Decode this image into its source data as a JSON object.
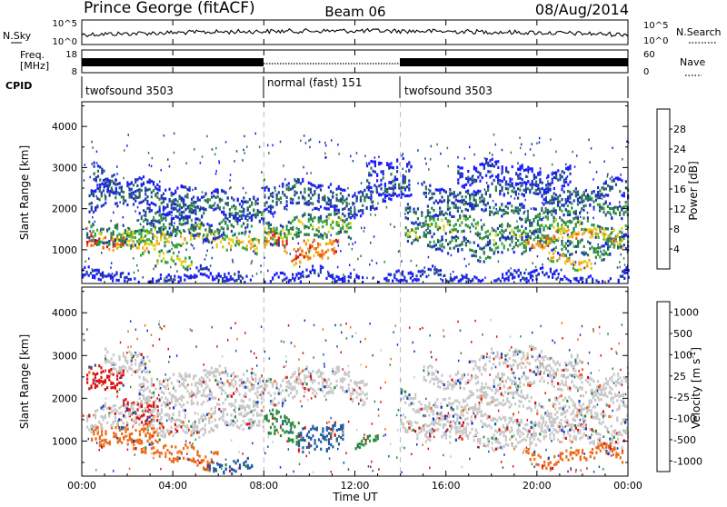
{
  "header": {
    "station": "Prince George (fitACF)",
    "beam": "Beam 06",
    "date": "08/Aug/2014"
  },
  "top_panels": {
    "nsky_label": "N.Sky",
    "nsearch_label": "N.Search",
    "freq_label_line1": "Freq.",
    "freq_label_line2": "[MHz]",
    "nave_label": "Nave",
    "cpid_label": "CPID",
    "noise_left_ticks": [
      "10^5",
      "10^0"
    ],
    "noise_right_ticks": [
      "10^5",
      "10^0"
    ],
    "freq_left_ticks": [
      "18",
      "8"
    ],
    "freq_right_ticks": [
      "60",
      "0"
    ]
  },
  "cpid_segments": [
    {
      "label": "twofsound 3503",
      "start_hour": 0,
      "end_hour": 8
    },
    {
      "label": "normal (fast) 151",
      "start_hour": 8,
      "end_hour": 14
    },
    {
      "label": "twofsound 3503",
      "start_hour": 14,
      "end_hour": 24
    }
  ],
  "chart_data": [
    {
      "type": "heatmap",
      "name": "Power",
      "ylabel": "Slant Range [km]",
      "xlabel": "Time UT",
      "x_ticks": [
        "00:00",
        "04:00",
        "08:00",
        "12:00",
        "16:00",
        "20:00",
        "00:00"
      ],
      "x_range_hours": [
        0,
        24
      ],
      "y_ticks": [
        1000,
        2000,
        3000,
        4000
      ],
      "ylim": [
        180,
        4600
      ],
      "colorbar_label": "Power [dB]",
      "colorbar_ticks": [
        4,
        8,
        12,
        16,
        20,
        24,
        28
      ],
      "colorbar_range": [
        0,
        32
      ],
      "colors": [
        "#1a1aff",
        "#1f3f9c",
        "#2e7a4a",
        "#36a83a",
        "#e6cf1a",
        "#f39d1c",
        "#ee5a16",
        "#d9110f"
      ],
      "bands": [
        {
          "t0": 0.2,
          "t1": 1.8,
          "r": 1100,
          "w": 220,
          "v": 28
        },
        {
          "t0": 1.5,
          "t1": 7.8,
          "r": 1250,
          "w": 250,
          "v": 19
        },
        {
          "t0": 0.2,
          "t1": 3.5,
          "r": 1450,
          "w": 280,
          "v": 14
        },
        {
          "t0": 2.5,
          "t1": 7.5,
          "r": 1600,
          "w": 300,
          "v": 10
        },
        {
          "t0": 0.3,
          "t1": 5.0,
          "r": 2300,
          "w": 400,
          "v": 7
        },
        {
          "t0": 4.0,
          "t1": 8.0,
          "r": 2000,
          "w": 350,
          "v": 9
        },
        {
          "t0": 0.5,
          "t1": 1.5,
          "r": 2700,
          "w": 350,
          "v": 6
        },
        {
          "t0": 3.2,
          "t1": 4.8,
          "r": 650,
          "w": 200,
          "v": 16
        },
        {
          "t0": 8.0,
          "t1": 9.0,
          "r": 1150,
          "w": 250,
          "v": 27
        },
        {
          "t0": 9.2,
          "t1": 11.3,
          "r": 1000,
          "w": 300,
          "v": 26
        },
        {
          "t0": 8.0,
          "t1": 11.8,
          "r": 1500,
          "w": 350,
          "v": 14
        },
        {
          "t0": 8.0,
          "t1": 13.0,
          "r": 2250,
          "w": 400,
          "v": 8
        },
        {
          "t0": 12.5,
          "t1": 14.5,
          "r": 2600,
          "w": 600,
          "v": 6
        },
        {
          "t0": 14.2,
          "t1": 24.0,
          "r": 2000,
          "w": 250,
          "v": 10
        },
        {
          "t0": 14.2,
          "t1": 24.0,
          "r": 1500,
          "w": 250,
          "v": 14
        },
        {
          "t0": 15.0,
          "t1": 24.0,
          "r": 1100,
          "w": 250,
          "v": 11
        },
        {
          "t0": 15.0,
          "t1": 24.0,
          "r": 2400,
          "w": 250,
          "v": 8
        },
        {
          "t0": 16.5,
          "t1": 21.5,
          "r": 2800,
          "w": 300,
          "v": 5
        },
        {
          "t0": 19.5,
          "t1": 23.8,
          "r": 1300,
          "w": 180,
          "v": 22
        },
        {
          "t0": 20.5,
          "t1": 22.5,
          "r": 650,
          "w": 180,
          "v": 20
        },
        {
          "t0": 0.0,
          "t1": 24.0,
          "r": 300,
          "w": 160,
          "v": 4
        }
      ]
    },
    {
      "type": "heatmap",
      "name": "Velocity",
      "ylabel": "Slant Range [km]",
      "xlabel": "Time UT",
      "x_ticks": [
        "00:00",
        "04:00",
        "08:00",
        "12:00",
        "16:00",
        "20:00",
        "00:00"
      ],
      "x_range_hours": [
        0,
        24
      ],
      "y_ticks": [
        1000,
        2000,
        3000,
        4000
      ],
      "ylim": [
        180,
        4600
      ],
      "colorbar_label": "Velocity [m s^-1]",
      "colorbar_ticks": [
        1000,
        500,
        100,
        25,
        -25,
        -100,
        -500,
        -1000
      ],
      "colors": [
        "#1432c8",
        "#1f5aa0",
        "#2e8a3e",
        "#55c12a",
        "#c8c8c8",
        "#f3a51c",
        "#ee6a16",
        "#d9110f"
      ],
      "bands": [
        {
          "t0": 0.2,
          "t1": 1.8,
          "r": 2350,
          "w": 350,
          "v": -500
        },
        {
          "t0": 1.8,
          "t1": 3.2,
          "r": 1800,
          "w": 300,
          "v": -500
        },
        {
          "t0": 0.4,
          "t1": 3.5,
          "r": 1200,
          "w": 300,
          "v": -100
        },
        {
          "t0": 2.5,
          "t1": 6.0,
          "r": 700,
          "w": 250,
          "v": -100
        },
        {
          "t0": 0.2,
          "t1": 8.0,
          "r": 1500,
          "w": 350,
          "v": 0
        },
        {
          "t0": 2.5,
          "t1": 8.0,
          "r": 2200,
          "w": 500,
          "v": 0
        },
        {
          "t0": 1.0,
          "t1": 3.0,
          "r": 2900,
          "w": 300,
          "v": 0
        },
        {
          "t0": 5.5,
          "t1": 7.5,
          "r": 500,
          "w": 180,
          "v": 500
        },
        {
          "t0": 8.0,
          "t1": 9.5,
          "r": 1300,
          "w": 350,
          "v": 100
        },
        {
          "t0": 9.5,
          "t1": 11.5,
          "r": 1050,
          "w": 350,
          "v": 500
        },
        {
          "t0": 8.0,
          "t1": 12.5,
          "r": 2300,
          "w": 400,
          "v": 0
        },
        {
          "t0": 12.0,
          "t1": 13.0,
          "r": 1100,
          "w": 150,
          "v": 100
        },
        {
          "t0": 14.0,
          "t1": 24.0,
          "r": 1900,
          "w": 250,
          "v": 0
        },
        {
          "t0": 14.0,
          "t1": 24.0,
          "r": 1450,
          "w": 250,
          "v": 0
        },
        {
          "t0": 15.0,
          "t1": 24.0,
          "r": 1100,
          "w": 250,
          "v": 0
        },
        {
          "t0": 15.0,
          "t1": 24.0,
          "r": 2400,
          "w": 250,
          "v": 0
        },
        {
          "t0": 17.0,
          "t1": 22.0,
          "r": 2850,
          "w": 300,
          "v": 0
        },
        {
          "t0": 19.5,
          "t1": 23.8,
          "r": 650,
          "w": 180,
          "v": -100
        }
      ]
    }
  ]
}
